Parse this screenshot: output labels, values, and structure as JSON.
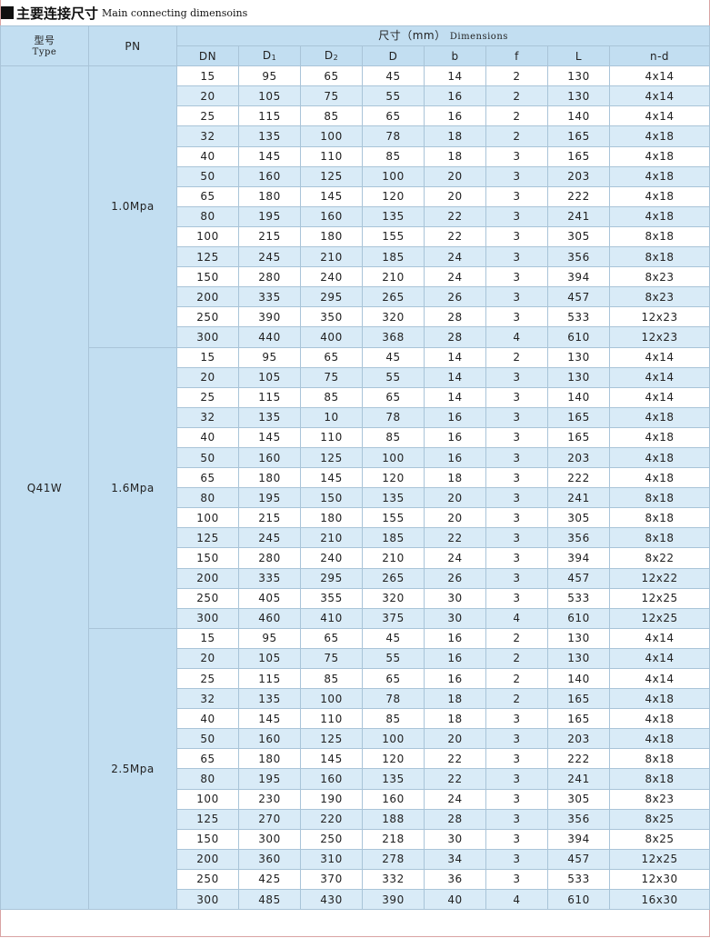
{
  "title": {
    "zh": "主要连接尺寸",
    "en": "Main connecting dimensoins"
  },
  "header": {
    "type_zh": "型号",
    "type_en": "Type",
    "pn": "PN",
    "dims_zh": "尺寸（mm）",
    "dims_en": "Dimensions",
    "columns": [
      "DN",
      "D",
      "D",
      "D",
      "b",
      "f",
      "L",
      "n-d"
    ],
    "subscripts": {
      "2": "1",
      "3": "2"
    }
  },
  "type_value": "Q41W",
  "groups": [
    {
      "pn": "1.0Mpa",
      "rows": [
        [
          "15",
          "95",
          "65",
          "45",
          "14",
          "2",
          "130",
          "4x14"
        ],
        [
          "20",
          "105",
          "75",
          "55",
          "16",
          "2",
          "130",
          "4x14"
        ],
        [
          "25",
          "115",
          "85",
          "65",
          "16",
          "2",
          "140",
          "4x14"
        ],
        [
          "32",
          "135",
          "100",
          "78",
          "18",
          "2",
          "165",
          "4x18"
        ],
        [
          "40",
          "145",
          "110",
          "85",
          "18",
          "3",
          "165",
          "4x18"
        ],
        [
          "50",
          "160",
          "125",
          "100",
          "20",
          "3",
          "203",
          "4x18"
        ],
        [
          "65",
          "180",
          "145",
          "120",
          "20",
          "3",
          "222",
          "4x18"
        ],
        [
          "80",
          "195",
          "160",
          "135",
          "22",
          "3",
          "241",
          "4x18"
        ],
        [
          "100",
          "215",
          "180",
          "155",
          "22",
          "3",
          "305",
          "8x18"
        ],
        [
          "125",
          "245",
          "210",
          "185",
          "24",
          "3",
          "356",
          "8x18"
        ],
        [
          "150",
          "280",
          "240",
          "210",
          "24",
          "3",
          "394",
          "8x23"
        ],
        [
          "200",
          "335",
          "295",
          "265",
          "26",
          "3",
          "457",
          "8x23"
        ],
        [
          "250",
          "390",
          "350",
          "320",
          "28",
          "3",
          "533",
          "12x23"
        ],
        [
          "300",
          "440",
          "400",
          "368",
          "28",
          "4",
          "610",
          "12x23"
        ]
      ]
    },
    {
      "pn": "1.6Mpa",
      "rows": [
        [
          "15",
          "95",
          "65",
          "45",
          "14",
          "2",
          "130",
          "4x14"
        ],
        [
          "20",
          "105",
          "75",
          "55",
          "14",
          "3",
          "130",
          "4x14"
        ],
        [
          "25",
          "115",
          "85",
          "65",
          "14",
          "3",
          "140",
          "4x14"
        ],
        [
          "32",
          "135",
          "10",
          "78",
          "16",
          "3",
          "165",
          "4x18"
        ],
        [
          "40",
          "145",
          "110",
          "85",
          "16",
          "3",
          "165",
          "4x18"
        ],
        [
          "50",
          "160",
          "125",
          "100",
          "16",
          "3",
          "203",
          "4x18"
        ],
        [
          "65",
          "180",
          "145",
          "120",
          "18",
          "3",
          "222",
          "4x18"
        ],
        [
          "80",
          "195",
          "150",
          "135",
          "20",
          "3",
          "241",
          "8x18"
        ],
        [
          "100",
          "215",
          "180",
          "155",
          "20",
          "3",
          "305",
          "8x18"
        ],
        [
          "125",
          "245",
          "210",
          "185",
          "22",
          "3",
          "356",
          "8x18"
        ],
        [
          "150",
          "280",
          "240",
          "210",
          "24",
          "3",
          "394",
          "8x22"
        ],
        [
          "200",
          "335",
          "295",
          "265",
          "26",
          "3",
          "457",
          "12x22"
        ],
        [
          "250",
          "405",
          "355",
          "320",
          "30",
          "3",
          "533",
          "12x25"
        ],
        [
          "300",
          "460",
          "410",
          "375",
          "30",
          "4",
          "610",
          "12x25"
        ]
      ]
    },
    {
      "pn": "2.5Mpa",
      "rows": [
        [
          "15",
          "95",
          "65",
          "45",
          "16",
          "2",
          "130",
          "4x14"
        ],
        [
          "20",
          "105",
          "75",
          "55",
          "16",
          "2",
          "130",
          "4x14"
        ],
        [
          "25",
          "115",
          "85",
          "65",
          "16",
          "2",
          "140",
          "4x14"
        ],
        [
          "32",
          "135",
          "100",
          "78",
          "18",
          "2",
          "165",
          "4x18"
        ],
        [
          "40",
          "145",
          "110",
          "85",
          "18",
          "3",
          "165",
          "4x18"
        ],
        [
          "50",
          "160",
          "125",
          "100",
          "20",
          "3",
          "203",
          "4x18"
        ],
        [
          "65",
          "180",
          "145",
          "120",
          "22",
          "3",
          "222",
          "8x18"
        ],
        [
          "80",
          "195",
          "160",
          "135",
          "22",
          "3",
          "241",
          "8x18"
        ],
        [
          "100",
          "230",
          "190",
          "160",
          "24",
          "3",
          "305",
          "8x23"
        ],
        [
          "125",
          "270",
          "220",
          "188",
          "28",
          "3",
          "356",
          "8x25"
        ],
        [
          "150",
          "300",
          "250",
          "218",
          "30",
          "3",
          "394",
          "8x25"
        ],
        [
          "200",
          "360",
          "310",
          "278",
          "34",
          "3",
          "457",
          "12x25"
        ],
        [
          "250",
          "425",
          "370",
          "332",
          "36",
          "3",
          "533",
          "12x30"
        ],
        [
          "300",
          "485",
          "430",
          "390",
          "40",
          "4",
          "610",
          "16x30"
        ]
      ]
    }
  ]
}
